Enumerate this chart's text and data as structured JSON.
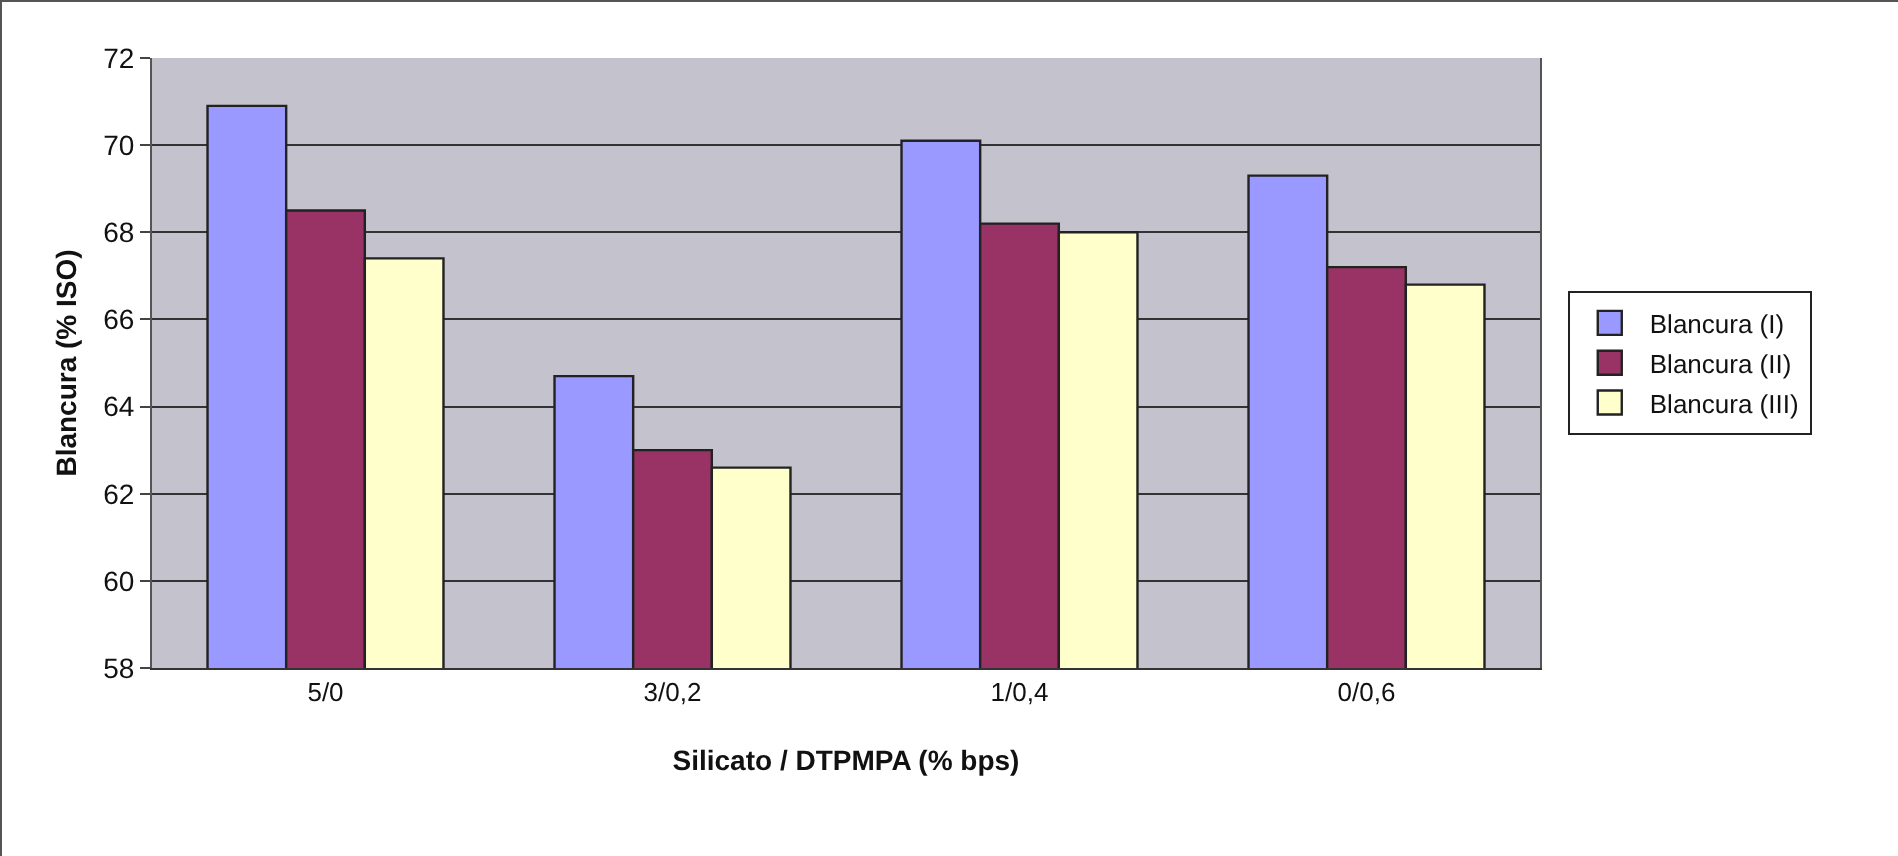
{
  "chart_data": {
    "type": "bar",
    "xlabel": "Silicato / DTPMPA (% bps)",
    "ylabel": "Blancura (% ISO)",
    "categories": [
      "5/0",
      "3/0,2",
      "1/0,4",
      "0/0,6"
    ],
    "series": [
      {
        "name": "Blancura (I)",
        "color": "#9999ff",
        "values": [
          70.9,
          64.7,
          70.1,
          69.3
        ]
      },
      {
        "name": "Blancura (II)",
        "color": "#993366",
        "values": [
          68.5,
          63.0,
          68.2,
          67.2
        ]
      },
      {
        "name": "Blancura (III)",
        "color": "#ffffcc",
        "values": [
          67.4,
          62.6,
          68.0,
          66.8
        ]
      }
    ],
    "ylim": [
      58,
      72
    ],
    "yticks": [
      58,
      60,
      62,
      64,
      66,
      68,
      70,
      72
    ],
    "grid": "y",
    "legend": "right"
  }
}
